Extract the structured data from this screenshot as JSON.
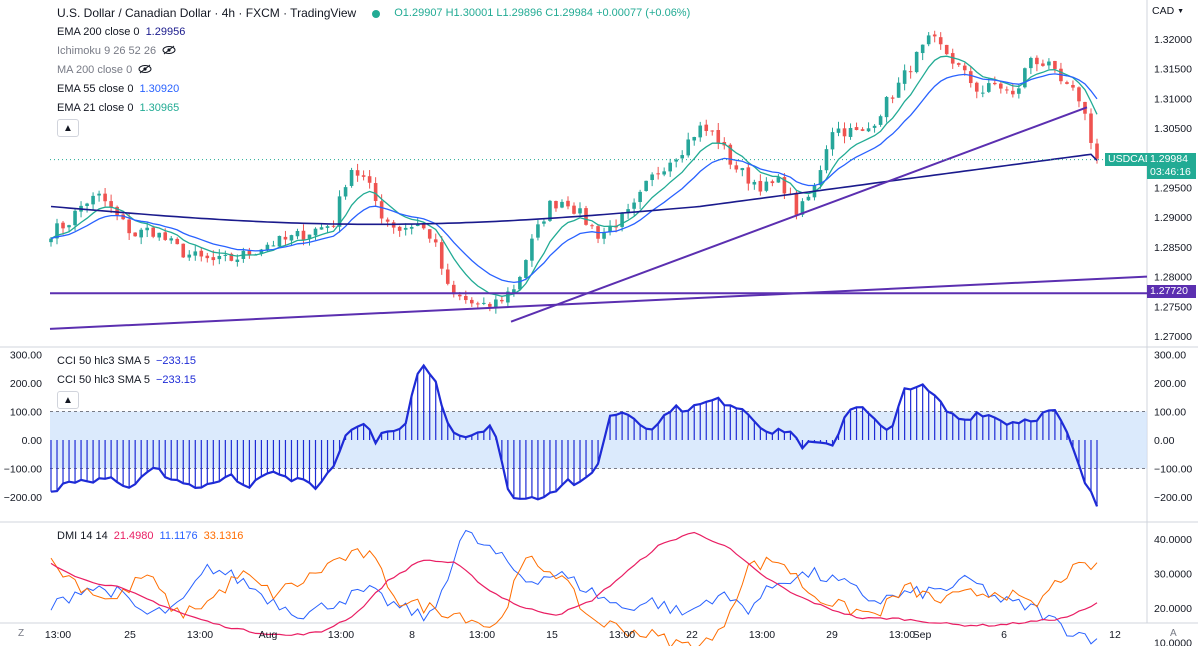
{
  "header": {
    "symbol_title": "U.S. Dollar / Canadian Dollar · 4h · FXCM · TradingView",
    "ohlc": "O1.29907 H1.30001 L1.29896 C1.29984 +0.00077 (+0.06%)",
    "currency": "CAD"
  },
  "indicators": [
    {
      "label": "EMA 200 close 0",
      "value": "1.29956",
      "color": "#1a1a8c",
      "muted": false
    },
    {
      "label": "Ichimoku 9 26 52 26",
      "value": "",
      "color": "#787b86",
      "muted": true,
      "hidden_icon": true
    },
    {
      "label": "MA 200 close 0",
      "value": "",
      "color": "#787b86",
      "muted": true,
      "hidden_icon": true
    },
    {
      "label": "EMA 55 close 0",
      "value": "1.30920",
      "color": "#2962ff",
      "muted": false
    },
    {
      "label": "EMA 21 close 0",
      "value": "1.30965",
      "color": "#22ab94",
      "muted": false
    }
  ],
  "cci_labels": [
    {
      "label": "CCI 50 hlc3 SMA 5",
      "value": "−233.15"
    },
    {
      "label": "CCI 50 hlc3 SMA 5",
      "value": "−233.15"
    }
  ],
  "dmi": {
    "label": "DMI 14 14",
    "values": [
      "21.4980",
      "11.1176",
      "33.1316"
    ],
    "colors": [
      "#e91e63",
      "#2962ff",
      "#ff6d00"
    ]
  },
  "price_axis": {
    "ticks": [
      "1.32000",
      "1.31500",
      "1.31000",
      "1.30500",
      "1.29500",
      "1.29000",
      "1.28500",
      "1.28000",
      "1.27500",
      "1.27000"
    ]
  },
  "cci_axis": {
    "left": [
      "300.00",
      "200.00",
      "100.00",
      "0.00",
      "−100.00",
      "−200.00"
    ],
    "right": [
      "300.00",
      "200.00",
      "100.00",
      "0.00",
      "−100.00",
      "−200.00"
    ]
  },
  "dmi_axis": {
    "ticks": [
      "40.0000",
      "30.0000",
      "20.0000",
      "10.0000"
    ]
  },
  "time_axis": [
    "13:00",
    "25",
    "13:00",
    "Aug",
    "13:00",
    "8",
    "13:00",
    "15",
    "13:00",
    "22",
    "13:00",
    "29",
    "13:00",
    "Sep",
    "6",
    "12"
  ],
  "price_tags": {
    "symbol": "USDCAD",
    "last_price": "1.29984",
    "countdown": "03:46:16",
    "level": "1.27720"
  },
  "bottom_buttons": {
    "left": "Z",
    "right": "A"
  },
  "colors": {
    "up": "#26a69a",
    "down": "#ef5350",
    "trend": "#5b2fb0",
    "cci": "#1e2bd6",
    "cci_band": "#cfe3fb"
  },
  "chart_data": [
    {
      "type": "candlestick",
      "title": "U.S. Dollar / Canadian Dollar · 4h · FXCM · TradingView",
      "ylim": [
        1.2685,
        1.3215
      ],
      "y_ticks": [
        1.32,
        1.315,
        1.31,
        1.305,
        1.3,
        1.295,
        1.29,
        1.285,
        1.28,
        1.275,
        1.27
      ],
      "x_ticks": [
        "13:00",
        "25",
        "13:00",
        "Aug",
        "13:00",
        "8",
        "13:00",
        "15",
        "13:00",
        "22",
        "13:00",
        "29",
        "13:00",
        "Sep",
        "6",
        "12"
      ],
      "close_anchors": [
        1.2875,
        1.289,
        1.2925,
        1.2935,
        1.29,
        1.287,
        1.288,
        1.286,
        1.284,
        1.283,
        1.2825,
        1.283,
        1.284,
        1.2855,
        1.286,
        1.287,
        1.288,
        1.289,
        1.2985,
        1.296,
        1.29,
        1.288,
        1.289,
        1.2865,
        1.277,
        1.276,
        1.2745,
        1.276,
        1.2785,
        1.286,
        1.292,
        1.293,
        1.29,
        1.287,
        1.289,
        1.291,
        1.296,
        1.299,
        1.3015,
        1.305,
        1.304,
        1.299,
        1.2965,
        1.295,
        1.296,
        1.2905,
        1.295,
        1.305,
        1.3045,
        1.304,
        1.308,
        1.312,
        1.3165,
        1.32,
        1.3175,
        1.314,
        1.311,
        1.3125,
        1.31,
        1.317,
        1.3155,
        1.312,
        1.31,
        1.2995
      ],
      "series": [
        {
          "name": "EMA 200 close 0",
          "last": 1.29956,
          "color": "#1a1a8c"
        },
        {
          "name": "EMA 55 close 0",
          "last": 1.3092,
          "color": "#2962ff"
        },
        {
          "name": "EMA 21 close 0",
          "last": 1.30965,
          "color": "#22ab94"
        }
      ],
      "horizontal_level": 1.2772,
      "last_price": 1.29984
    },
    {
      "type": "area",
      "title": "CCI 50 hlc3 SMA 5",
      "ylim": [
        -260,
        320
      ],
      "band": [
        -100,
        100
      ],
      "anchors": [
        -190,
        -150,
        -130,
        -140,
        -120,
        -170,
        -140,
        -100,
        -130,
        -150,
        -170,
        -160,
        -120,
        -170,
        -150,
        -110,
        -140,
        -130,
        -180,
        -100,
        10,
        70,
        0,
        30,
        30,
        270,
        220,
        50,
        10,
        30,
        60,
        -180,
        -210,
        -200,
        -180,
        -140,
        -160,
        -100,
        90,
        100,
        60,
        40,
        110,
        110,
        120,
        140,
        130,
        110,
        60,
        20,
        40,
        -20,
        -10,
        -30,
        100,
        130,
        60,
        20,
        190,
        190,
        150,
        90,
        70,
        100,
        80,
        60,
        70,
        80,
        110,
        20,
        -130,
        -233
      ]
    },
    {
      "type": "line",
      "title": "DMI 14 14",
      "ylim": [
        7,
        44
      ],
      "series": [
        {
          "name": "DMI 14 14 (1)",
          "last": 21.498,
          "color": "#e91e63"
        },
        {
          "name": "DMI 14 14 (2)",
          "last": 11.1176,
          "color": "#2962ff"
        },
        {
          "name": "DMI 14 14 (3)",
          "last": 33.1316,
          "color": "#ff6d00"
        }
      ]
    }
  ]
}
